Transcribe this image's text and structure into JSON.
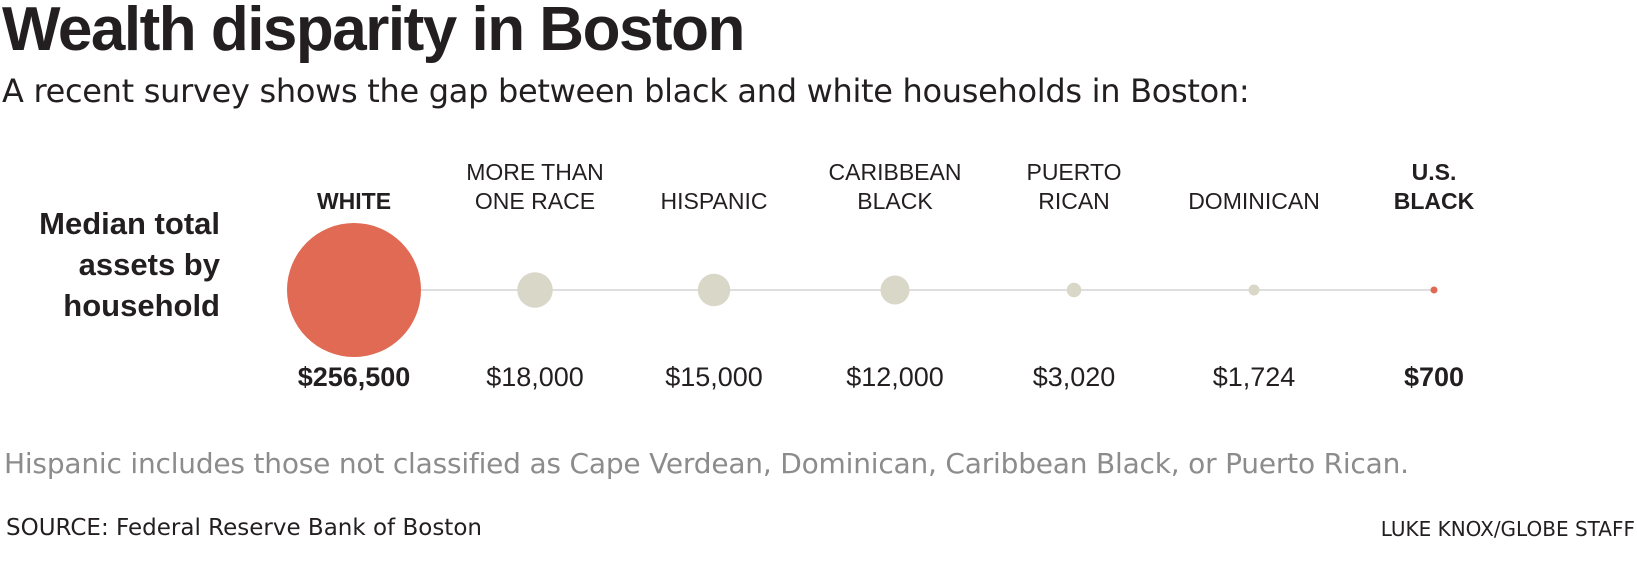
{
  "chart_data": {
    "type": "bubble",
    "title": "Wealth disparity in Boston",
    "subtitle": "A recent survey shows the gap between black and white households in Boston:",
    "measure_label": "Median total assets by household",
    "categories": [
      "WHITE",
      "MORE THAN ONE RACE",
      "HISPANIC",
      "CARIBBEAN BLACK",
      "PUERTO RICAN",
      "DOMINICAN",
      "U.S. BLACK"
    ],
    "category_label_lines": [
      [
        "WHITE"
      ],
      [
        "MORE THAN",
        "ONE RACE"
      ],
      [
        "HISPANIC"
      ],
      [
        "CARIBBEAN",
        "BLACK"
      ],
      [
        "PUERTO",
        "RICAN"
      ],
      [
        "DOMINICAN"
      ],
      [
        "U.S.",
        "BLACK"
      ]
    ],
    "values": [
      256500,
      18000,
      15000,
      12000,
      3020,
      1724,
      700
    ],
    "value_labels": [
      "$256,500",
      "$18,000",
      "$15,000",
      "$12,000",
      "$3,020",
      "$1,724",
      "$700"
    ],
    "highlighted": [
      "WHITE",
      "U.S. BLACK"
    ],
    "colors": {
      "highlight": "#e06a53",
      "default": "#d9d7c7",
      "connector": "#bdbdbd",
      "highlight_connector": "#d44a3a"
    }
  },
  "note": "Hispanic includes those not classified as Cape Verdean, Dominican, Caribbean Black, or Puerto Rican.",
  "source": "SOURCE: Federal Reserve Bank of Boston",
  "credit": "LUKE KNOX/GLOBE STAFF"
}
